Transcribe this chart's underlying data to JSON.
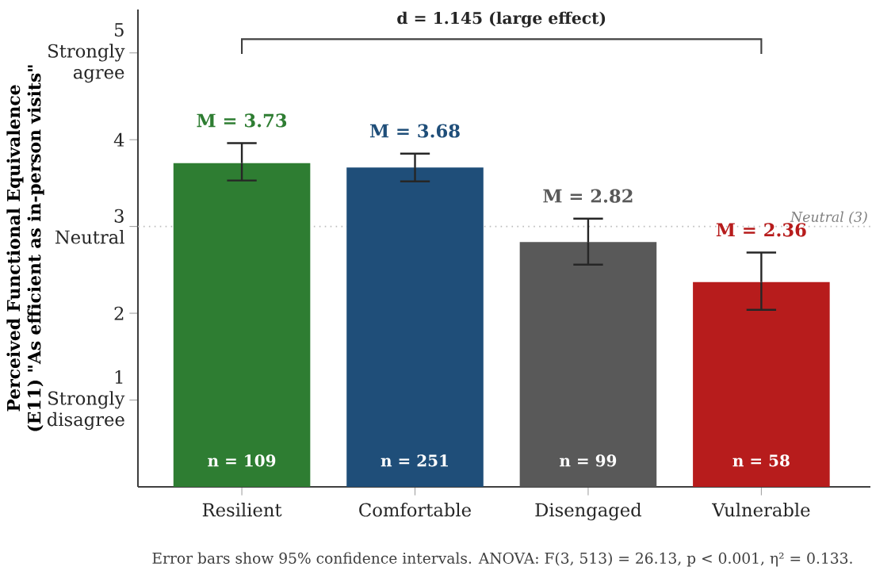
{
  "chart_data": {
    "type": "bar",
    "ylabel": "Perceived Functional Equivalence (E11) \"As efficient as in-person visits\"",
    "categories": [
      "Resilient",
      "Comfortable",
      "Disengaged",
      "Vulnerable"
    ],
    "values": [
      3.73,
      3.68,
      2.82,
      2.36
    ],
    "colors": [
      "#2e7d32",
      "#1f4e79",
      "#595959",
      "#b71c1c"
    ],
    "errors": [
      [
        3.53,
        3.96
      ],
      [
        3.52,
        3.84
      ],
      [
        2.56,
        3.09
      ],
      [
        2.04,
        2.7
      ]
    ],
    "value_labels": [
      "M = 3.73",
      "M = 3.68",
      "M = 2.82",
      "M = 2.36"
    ],
    "ylim": [
      0,
      5.5
    ],
    "yticks": [
      {
        "value": 1,
        "label": "1 Strongly disagree"
      },
      2,
      {
        "value": 3,
        "label": "3 Neutral"
      },
      4,
      {
        "value": 5,
        "label": "5 Strongly agree"
      }
    ],
    "ref_lines": [
      {
        "axis": "y",
        "value": 3,
        "label": "Neutral (3)",
        "color": "#bbbbbb",
        "line_style": "dotted"
      }
    ],
    "annotations": [
      "d = 1.145 (large effect)",
      "n = 109",
      "n = 251",
      "n = 99",
      "n = 58",
      "Error bars show 95% confidence intervals. ANOVA: F(3, 513) = 26.13, p < 0.001, η² = 0.133."
    ]
  }
}
